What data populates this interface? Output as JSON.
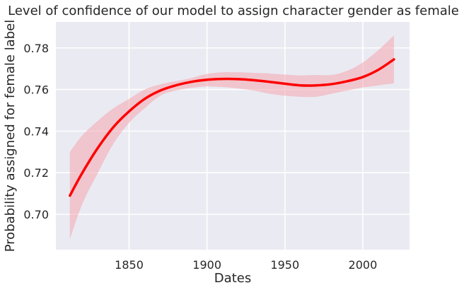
{
  "chart_data": {
    "type": "line",
    "title": "Level of confidence of our model to assign character gender as female",
    "xlabel": "Dates",
    "ylabel": "Probability assigned for female label",
    "xlim": [
      1803,
      2030
    ],
    "ylim": [
      0.683,
      0.7925
    ],
    "xticks": [
      1850,
      1900,
      1950,
      2000
    ],
    "yticks": [
      0.7,
      0.72,
      0.74,
      0.76,
      0.78
    ],
    "ytick_labels": [
      "0.70",
      "0.72",
      "0.74",
      "0.76",
      "0.78"
    ],
    "grid": true,
    "series": [
      {
        "color": "#ff0000",
        "band_color": "#f4a6ae",
        "x": [
          1812,
          1820,
          1830,
          1840,
          1850,
          1860,
          1870,
          1880,
          1890,
          1900,
          1910,
          1920,
          1930,
          1940,
          1950,
          1960,
          1970,
          1980,
          1990,
          2000,
          2010,
          2020
        ],
        "y": [
          0.709,
          0.72,
          0.732,
          0.742,
          0.7495,
          0.7555,
          0.7595,
          0.762,
          0.7637,
          0.7647,
          0.7651,
          0.765,
          0.7645,
          0.7637,
          0.7628,
          0.762,
          0.762,
          0.7626,
          0.764,
          0.766,
          0.7695,
          0.7745
        ],
        "lower": [
          0.688,
          0.705,
          0.72,
          0.734,
          0.744,
          0.751,
          0.757,
          0.7595,
          0.7608,
          0.7615,
          0.7612,
          0.7605,
          0.7595,
          0.758,
          0.757,
          0.7565,
          0.7565,
          0.758,
          0.7595,
          0.761,
          0.762,
          0.763
        ],
        "upper": [
          0.73,
          0.738,
          0.745,
          0.751,
          0.7555,
          0.76,
          0.7625,
          0.764,
          0.7655,
          0.7675,
          0.7683,
          0.7683,
          0.768,
          0.7677,
          0.7672,
          0.7668,
          0.767,
          0.767,
          0.769,
          0.773,
          0.779,
          0.786
        ]
      }
    ]
  }
}
